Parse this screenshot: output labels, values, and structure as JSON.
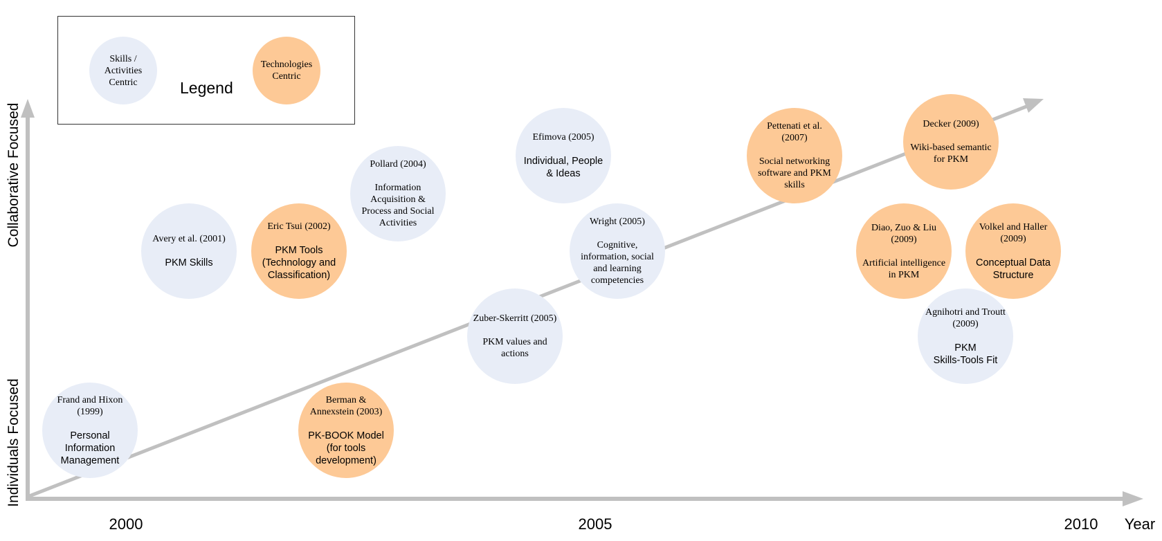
{
  "legend": {
    "title": "Legend",
    "skills_label": "Skills /\nActivities\nCentric",
    "tech_label": "Technologies\nCentric"
  },
  "colors": {
    "skills": "#e8edf7",
    "technology": "#fdc996",
    "axis": "#c0c0c0"
  },
  "axes": {
    "y_bottom_label": "Individuals Focused",
    "y_top_label": "Collaborative Focused",
    "x_ticks": [
      "2000",
      "2005",
      "2010"
    ],
    "x_title": "Year"
  },
  "nodes": [
    {
      "id": "frand-hixon",
      "type": "skills",
      "ref": "Frand and Hixon\n(1999)",
      "desc": "Personal\nInformation\nManagement",
      "desc_serif": false
    },
    {
      "id": "avery",
      "type": "skills",
      "ref": "Avery et al. (2001)",
      "desc": "PKM Skills",
      "desc_serif": false
    },
    {
      "id": "eric-tsui",
      "type": "tech",
      "ref": "Eric Tsui (2002)",
      "desc": "PKM Tools\n(Technology and\nClassification)",
      "desc_serif": false
    },
    {
      "id": "pollard",
      "type": "skills",
      "ref": "Pollard (2004)",
      "desc": "Information\nAcquisition &\nProcess and  Social\nActivities",
      "desc_serif": true
    },
    {
      "id": "berman",
      "type": "tech",
      "ref": "Berman &\nAnnexstein (2003)",
      "desc": "PK-BOOK Model\n(for tools\ndevelopment)",
      "desc_serif": false
    },
    {
      "id": "efimova",
      "type": "skills",
      "ref": "Efimova (2005)",
      "desc": "Individual, People\n& Ideas",
      "desc_serif": false
    },
    {
      "id": "wright",
      "type": "skills",
      "ref": "Wright (2005)",
      "desc": "Cognitive,\ninformation, social\nand learning\ncompetencies",
      "desc_serif": true
    },
    {
      "id": "zuber",
      "type": "skills",
      "ref": "Zuber-Skerritt (2005)",
      "desc": "PKM values and\nactions",
      "desc_serif": true
    },
    {
      "id": "pettenati",
      "type": "tech",
      "ref": "Pettenati et al.\n(2007)",
      "desc": "Social networking\nsoftware and PKM\nskills",
      "desc_serif": true
    },
    {
      "id": "decker",
      "type": "tech",
      "ref": "Decker (2009)",
      "desc": "Wiki-based semantic\nfor PKM",
      "desc_serif": true
    },
    {
      "id": "diao",
      "type": "tech",
      "ref": "Diao, Zuo & Liu\n(2009)",
      "desc": "Artificial intelligence\nin PKM",
      "desc_serif": true
    },
    {
      "id": "volkel",
      "type": "tech",
      "ref": "Volkel and Haller\n(2009)",
      "desc": "Conceptual Data\nStructure",
      "desc_serif": false
    },
    {
      "id": "agnihotri",
      "type": "skills",
      "ref": "Agnihotri and Troutt\n(2009)",
      "desc": "PKM\nSkills-Tools Fit",
      "desc_serif": false
    }
  ]
}
